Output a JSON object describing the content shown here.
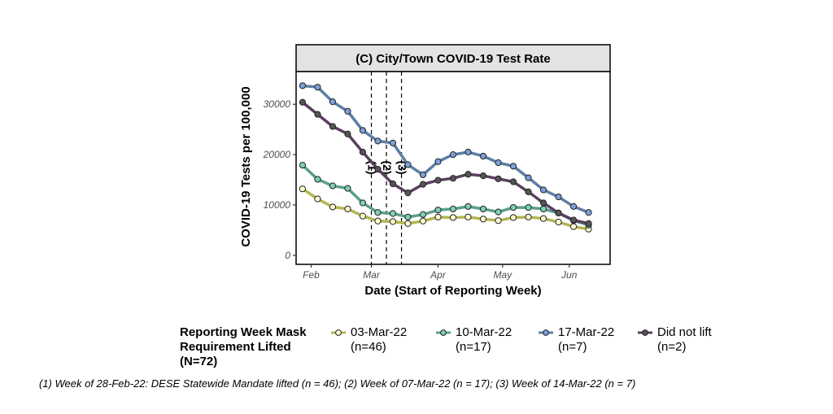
{
  "chart_data": {
    "type": "line",
    "title": "(C) City/Town COVID-19 Test Rate",
    "xlabel": "Date (Start of Reporting Week)",
    "ylabel": "COVID-19 Tests per 100,000",
    "ylim": [
      -1800,
      36500
    ],
    "xlim": [
      "2022-01-25",
      "2022-06-20"
    ],
    "yticks": [
      0,
      10000,
      20000,
      30000
    ],
    "ytick_labels": [
      "0",
      "10000",
      "20000",
      "30000"
    ],
    "xticks": [
      "2022-02-01",
      "2022-03-01",
      "2022-04-01",
      "2022-05-01",
      "2022-06-01"
    ],
    "xtick_labels": [
      "Feb",
      "Mar",
      "Apr",
      "May",
      "Jun"
    ],
    "grid": false,
    "x": [
      "2022-01-28",
      "2022-02-04",
      "2022-02-11",
      "2022-02-18",
      "2022-02-25",
      "2022-03-04",
      "2022-03-11",
      "2022-03-18",
      "2022-03-25",
      "2022-04-01",
      "2022-04-08",
      "2022-04-15",
      "2022-04-22",
      "2022-04-29",
      "2022-05-06",
      "2022-05-13",
      "2022-05-20",
      "2022-05-27",
      "2022-06-03",
      "2022-06-10"
    ],
    "series": [
      {
        "name": "03-Mar-22",
        "n": "(n=46)",
        "line": "#b3b651",
        "fill": "#fdfbd2",
        "values": [
          13200,
          11200,
          9600,
          9200,
          7800,
          6800,
          6700,
          6300,
          6800,
          7600,
          7500,
          7600,
          7200,
          6900,
          7500,
          7600,
          7300,
          6600,
          5700,
          5200
        ]
      },
      {
        "name": "10-Mar-22",
        "n": "(n=17)",
        "line": "#5c9f8c",
        "fill": "#7dd0b4",
        "values": [
          17900,
          15100,
          13800,
          13300,
          10400,
          8500,
          8300,
          7600,
          8100,
          9000,
          9200,
          9700,
          9200,
          8600,
          9500,
          9500,
          9200,
          8400,
          6900,
          6000
        ]
      },
      {
        "name": "17-Mar-22",
        "n": "(n=7)",
        "line": "#5d7fa6",
        "fill": "#7c9fd8",
        "values": [
          33700,
          33400,
          30500,
          28600,
          24800,
          22700,
          22300,
          18000,
          16000,
          18600,
          20000,
          20500,
          19700,
          18400,
          17700,
          15400,
          13000,
          11600,
          9700,
          8500
        ]
      },
      {
        "name": "Did not lift",
        "n": "(n=2)",
        "line": "#5b3f5f",
        "fill": "#555555",
        "values": [
          30400,
          28000,
          25600,
          24100,
          20500,
          17100,
          14200,
          12400,
          14100,
          14900,
          15300,
          16100,
          15800,
          15200,
          14600,
          12600,
          10400,
          8400,
          7000,
          6300
        ]
      }
    ],
    "vlines": [
      {
        "date": "2022-03-01",
        "label": "(1)"
      },
      {
        "date": "2022-03-08",
        "label": "(2)"
      },
      {
        "date": "2022-03-15",
        "label": "(3)"
      }
    ],
    "legend": {
      "title_lines": [
        "Reporting Week Mask",
        "Requirement Lifted",
        "(N=72)"
      ],
      "placement": "bottom"
    },
    "footnote": "(1) Week of 28-Feb-22: DESE Statewide Mandate lifted (n = 46); (2) Week of 07-Mar-22 (n = 17); (3) Week of 14-Mar-22 (n = 7)"
  }
}
